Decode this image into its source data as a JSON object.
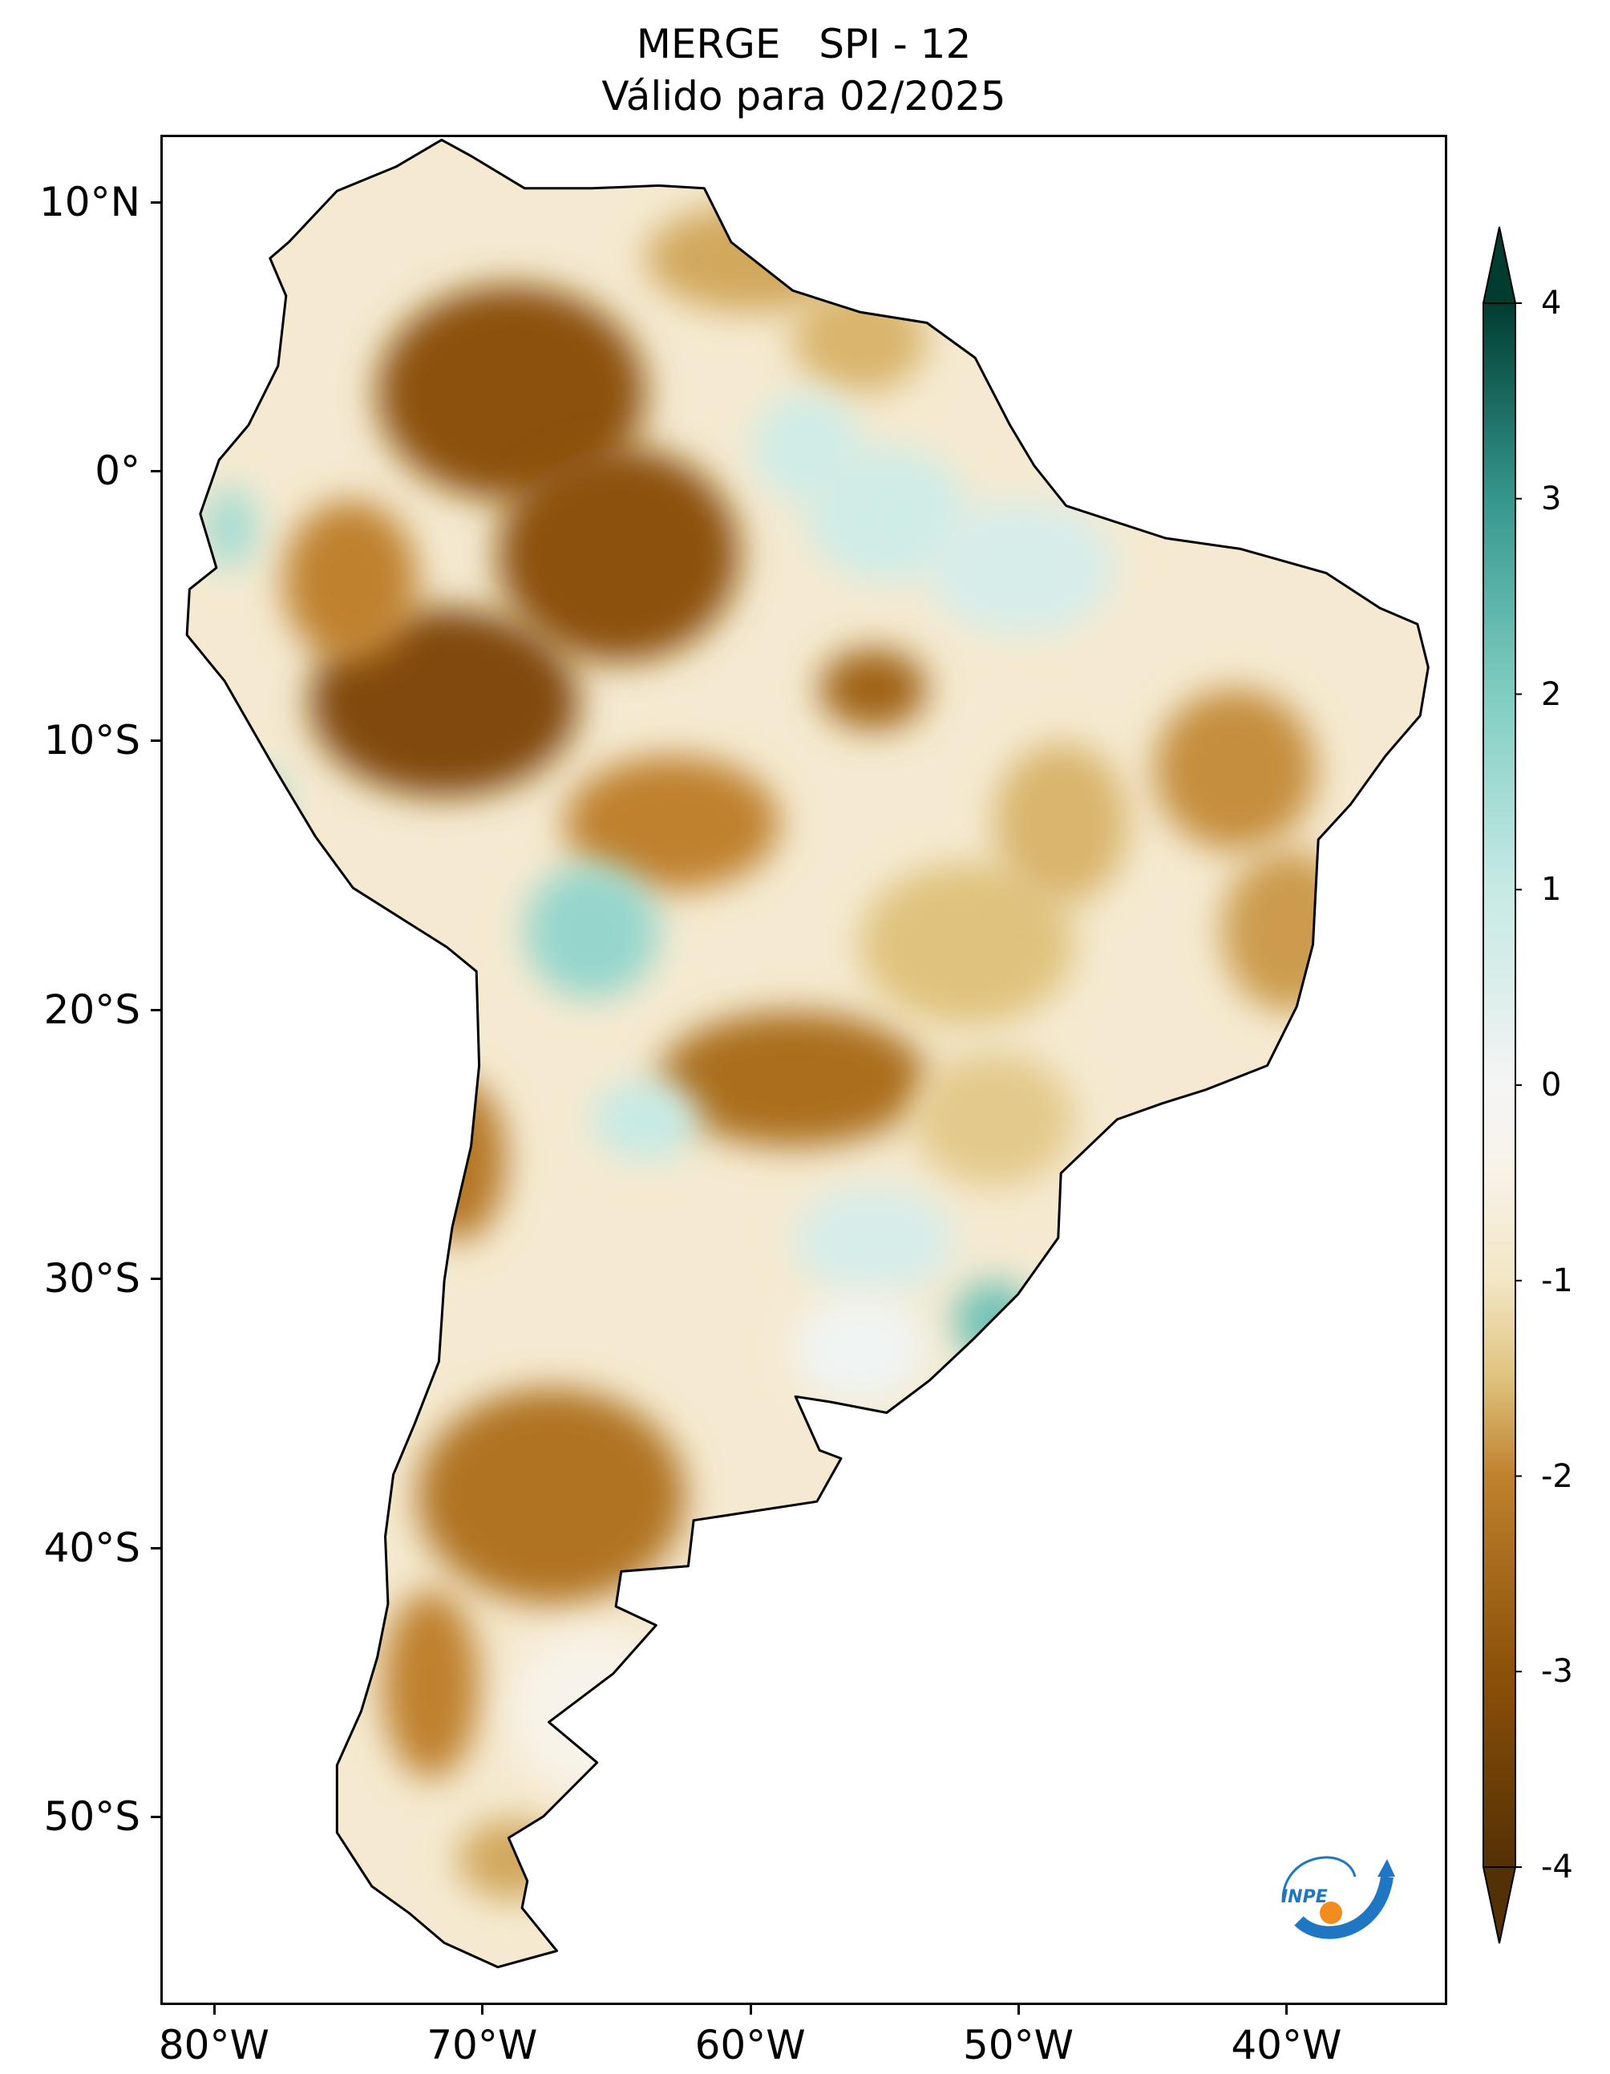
{
  "title": {
    "line1": "MERGE   SPI - 12",
    "line2": "Válido para 02/2025"
  },
  "map": {
    "lon_range": [
      -82,
      -34
    ],
    "lat_range": [
      -57,
      12.5
    ],
    "lat_ticks": [
      {
        "value": 10,
        "label": "10°N"
      },
      {
        "value": 0,
        "label": "0°"
      },
      {
        "value": -10,
        "label": "10°S"
      },
      {
        "value": -20,
        "label": "20°S"
      },
      {
        "value": -30,
        "label": "30°S"
      },
      {
        "value": -40,
        "label": "40°S"
      },
      {
        "value": -50,
        "label": "50°S"
      }
    ],
    "lon_ticks": [
      {
        "value": -80,
        "label": "80°W"
      },
      {
        "value": -70,
        "label": "70°W"
      },
      {
        "value": -60,
        "label": "60°W"
      },
      {
        "value": -50,
        "label": "50°W"
      },
      {
        "value": -40,
        "label": "40°W"
      }
    ],
    "outline": [
      [
        -77.3,
        8.6
      ],
      [
        -75.5,
        10.5
      ],
      [
        -73.3,
        11.4
      ],
      [
        -71.6,
        12.4
      ],
      [
        -70.5,
        11.8
      ],
      [
        -68.5,
        10.6
      ],
      [
        -66,
        10.6
      ],
      [
        -63.5,
        10.7
      ],
      [
        -61.8,
        10.6
      ],
      [
        -60.8,
        8.6
      ],
      [
        -58.5,
        6.8
      ],
      [
        -56,
        6
      ],
      [
        -53.5,
        5.6
      ],
      [
        -51.7,
        4.3
      ],
      [
        -50.4,
        1.8
      ],
      [
        -49.5,
        0.3
      ],
      [
        -48.3,
        -1.2
      ],
      [
        -44.6,
        -2.4
      ],
      [
        -41.8,
        -2.8
      ],
      [
        -38.6,
        -3.7
      ],
      [
        -36.6,
        -5
      ],
      [
        -35.2,
        -5.6
      ],
      [
        -34.8,
        -7.2
      ],
      [
        -35.1,
        -9
      ],
      [
        -36.4,
        -10.5
      ],
      [
        -37.7,
        -12.3
      ],
      [
        -38.9,
        -13.6
      ],
      [
        -39.1,
        -17.5
      ],
      [
        -39.7,
        -19.8
      ],
      [
        -40.8,
        -22
      ],
      [
        -43.1,
        -22.9
      ],
      [
        -44.7,
        -23.4
      ],
      [
        -46.4,
        -24
      ],
      [
        -48.5,
        -26
      ],
      [
        -48.6,
        -28.4
      ],
      [
        -50.1,
        -30.5
      ],
      [
        -51.8,
        -32.2
      ],
      [
        -53.4,
        -33.7
      ],
      [
        -55,
        -34.9
      ],
      [
        -57.1,
        -34.5
      ],
      [
        -58.4,
        -34.3
      ],
      [
        -57.5,
        -36.3
      ],
      [
        -56.7,
        -36.6
      ],
      [
        -57.6,
        -38.2
      ],
      [
        -62.2,
        -38.9
      ],
      [
        -62.4,
        -40.6
      ],
      [
        -64.9,
        -40.8
      ],
      [
        -65.1,
        -42.1
      ],
      [
        -63.6,
        -42.8
      ],
      [
        -65.2,
        -44.6
      ],
      [
        -67.6,
        -46.4
      ],
      [
        -65.8,
        -47.9
      ],
      [
        -67.8,
        -49.9
      ],
      [
        -69.1,
        -50.7
      ],
      [
        -68.4,
        -52.3
      ],
      [
        -68.6,
        -53.3
      ],
      [
        -67.3,
        -54.9
      ],
      [
        -69.5,
        -55.5
      ],
      [
        -71.5,
        -54.6
      ],
      [
        -72.8,
        -53.5
      ],
      [
        -74.2,
        -52.5
      ],
      [
        -75.5,
        -50.5
      ],
      [
        -75.5,
        -48
      ],
      [
        -74.6,
        -46
      ],
      [
        -74,
        -44
      ],
      [
        -73.6,
        -42
      ],
      [
        -73.7,
        -39.5
      ],
      [
        -73.4,
        -37.2
      ],
      [
        -72.6,
        -35.3
      ],
      [
        -71.7,
        -33
      ],
      [
        -71.5,
        -30
      ],
      [
        -71.2,
        -28
      ],
      [
        -70.5,
        -25
      ],
      [
        -70.2,
        -22
      ],
      [
        -70.3,
        -18.5
      ],
      [
        -71.4,
        -17.6
      ],
      [
        -74.9,
        -15.4
      ],
      [
        -76.3,
        -13.5
      ],
      [
        -77.8,
        -11
      ],
      [
        -79.7,
        -7.7
      ],
      [
        -81.1,
        -6
      ],
      [
        -81,
        -4.3
      ],
      [
        -80,
        -3.5
      ],
      [
        -80.6,
        -1.5
      ],
      [
        -79.9,
        0.5
      ],
      [
        -78.8,
        1.8
      ],
      [
        -77.7,
        4
      ],
      [
        -77.4,
        6.6
      ],
      [
        -78,
        8
      ]
    ],
    "patches": [
      {
        "lon": -69,
        "lat": 3,
        "rx": 5,
        "ry": 4,
        "value": -3
      },
      {
        "lon": -65,
        "lat": -3,
        "rx": 4.5,
        "ry": 4,
        "value": -3
      },
      {
        "lon": -71.5,
        "lat": -8.5,
        "rx": 5,
        "ry": 3.5,
        "value": -3.2
      },
      {
        "lon": -75,
        "lat": -4,
        "rx": 2.5,
        "ry": 3,
        "value": -2
      },
      {
        "lon": -63,
        "lat": -13,
        "rx": 4,
        "ry": 2.5,
        "value": -2
      },
      {
        "lon": -55.5,
        "lat": -8,
        "rx": 2,
        "ry": 1.5,
        "value": -2.6
      },
      {
        "lon": -58.5,
        "lat": -22.5,
        "rx": 5,
        "ry": 2.5,
        "value": -2.4
      },
      {
        "lon": -52,
        "lat": -17.5,
        "rx": 4,
        "ry": 3,
        "value": -1.5
      },
      {
        "lon": -48.5,
        "lat": -13,
        "rx": 2.5,
        "ry": 3,
        "value": -1.6
      },
      {
        "lon": -42,
        "lat": -11,
        "rx": 3,
        "ry": 3,
        "value": -1.9
      },
      {
        "lon": -40,
        "lat": -17,
        "rx": 2.5,
        "ry": 3,
        "value": -1.8
      },
      {
        "lon": -51,
        "lat": -24,
        "rx": 3,
        "ry": 2.5,
        "value": -1.4
      },
      {
        "lon": -67.5,
        "lat": -38,
        "rx": 5,
        "ry": 4,
        "value": -2.3
      },
      {
        "lon": -71,
        "lat": -25.5,
        "rx": 1.8,
        "ry": 3,
        "value": -2.2
      },
      {
        "lon": -72,
        "lat": -45,
        "rx": 1.8,
        "ry": 3.5,
        "value": -2
      },
      {
        "lon": -60,
        "lat": 8,
        "rx": 4,
        "ry": 2,
        "value": -1.7
      },
      {
        "lon": -56,
        "lat": 5,
        "rx": 2.5,
        "ry": 2,
        "value": -1.6
      },
      {
        "lon": -55,
        "lat": -1.5,
        "rx": 3,
        "ry": 2.5,
        "value": 0.8
      },
      {
        "lon": -50,
        "lat": -3.5,
        "rx": 3.5,
        "ry": 2.5,
        "value": 0.6
      },
      {
        "lon": -66,
        "lat": -17,
        "rx": 2.5,
        "ry": 2.5,
        "value": 1.7
      },
      {
        "lon": -51,
        "lat": -31.5,
        "rx": 1.5,
        "ry": 1.5,
        "value": 2.2
      },
      {
        "lon": -78.5,
        "lat": -12.5,
        "rx": 1,
        "ry": 1.5,
        "value": 1.8
      },
      {
        "lon": -79.5,
        "lat": -2,
        "rx": 1,
        "ry": 1.5,
        "value": 1.5
      },
      {
        "lon": -55.5,
        "lat": -28.5,
        "rx": 3,
        "ry": 2,
        "value": 0.6
      },
      {
        "lon": -56,
        "lat": -32.5,
        "rx": 2.5,
        "ry": 2,
        "value": 0.1
      },
      {
        "lon": -64,
        "lat": -24,
        "rx": 2,
        "ry": 1.5,
        "value": 1
      },
      {
        "lon": -58,
        "lat": 1,
        "rx": 2,
        "ry": 2,
        "value": 0.8
      },
      {
        "lon": -66,
        "lat": -46,
        "rx": 3,
        "ry": 3,
        "value": -0.4
      },
      {
        "lon": -69,
        "lat": -51.5,
        "rx": 2,
        "ry": 1.5,
        "value": -1.7
      }
    ]
  },
  "colorbar": {
    "min": -4,
    "max": 4,
    "labels": [
      "4",
      "3",
      "2",
      "1",
      "0",
      "-1",
      "-2",
      "-3",
      "-4"
    ],
    "colors": [
      {
        "value": -4,
        "color": "#543005"
      },
      {
        "value": -3,
        "color": "#8c5109"
      },
      {
        "value": -2,
        "color": "#bf812d"
      },
      {
        "value": -1.5,
        "color": "#dfc27d"
      },
      {
        "value": -1,
        "color": "#f3e6c5"
      },
      {
        "value": -0.4,
        "color": "#f8f3ea"
      },
      {
        "value": 0,
        "color": "#f5f5f5"
      },
      {
        "value": 0.5,
        "color": "#dbeeeb"
      },
      {
        "value": 1,
        "color": "#c7eae5"
      },
      {
        "value": 2,
        "color": "#80cdc1"
      },
      {
        "value": 3,
        "color": "#35978f"
      },
      {
        "value": 4,
        "color": "#003c30"
      }
    ]
  },
  "logo": {
    "text": "INPE",
    "blue": "#1f76c3",
    "orange": "#f28c1c"
  }
}
